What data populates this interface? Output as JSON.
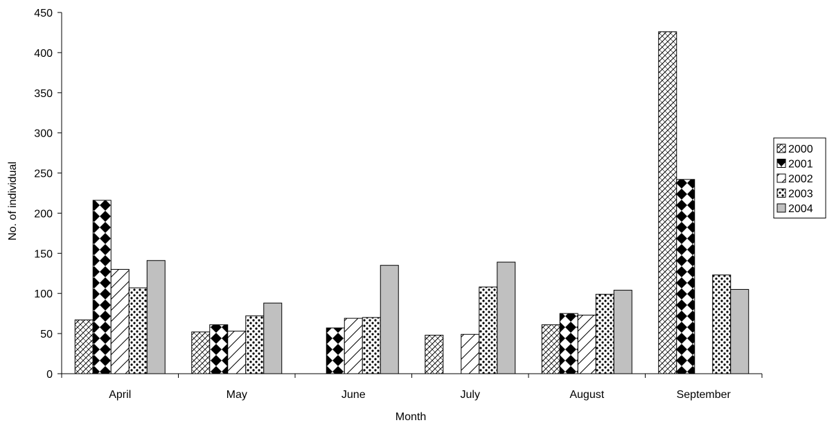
{
  "chart_data": {
    "type": "bar",
    "title": "",
    "xlabel": "Month",
    "ylabel": "No. of individual",
    "ylim": [
      0,
      450
    ],
    "yticks": [
      0,
      50,
      100,
      150,
      200,
      250,
      300,
      350,
      400,
      450
    ],
    "grid": false,
    "legend_position": "right",
    "categories": [
      "April",
      "May",
      "June",
      "July",
      "August",
      "September"
    ],
    "series": [
      {
        "name": "2000",
        "pattern": "diagonal-hatch",
        "values": [
          67,
          52,
          0,
          48,
          61,
          426
        ]
      },
      {
        "name": "2001",
        "pattern": "diamond",
        "values": [
          216,
          61,
          57,
          0,
          75,
          242
        ]
      },
      {
        "name": "2002",
        "pattern": "wide-diagonal",
        "values": [
          130,
          53,
          69,
          49,
          73,
          0
        ]
      },
      {
        "name": "2003",
        "pattern": "dots",
        "values": [
          107,
          72,
          70,
          108,
          99,
          123
        ]
      },
      {
        "name": "2004",
        "pattern": "solid-gray",
        "values": [
          141,
          88,
          135,
          139,
          104,
          105
        ]
      }
    ]
  }
}
